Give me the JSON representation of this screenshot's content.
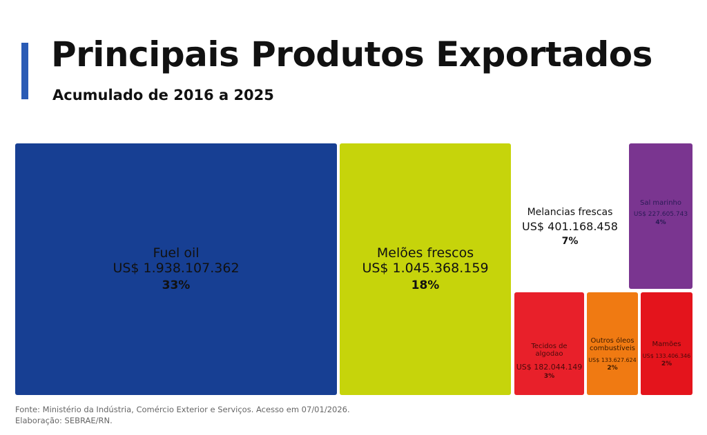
{
  "title": "Principais Produtos Exportados",
  "subtitle": "Acumulado de 2016 a 2025",
  "chart_data": {
    "type": "treemap",
    "title": "Principais Produtos Exportados",
    "subtitle": "Acumulado de 2016 a 2025",
    "items": [
      {
        "name": "Fuel oil",
        "value": "US$ 1.938.107.362",
        "pct": "33%",
        "color": "#173f93",
        "text": "#111"
      },
      {
        "name": "Melões frescos",
        "value": "US$ 1.045.368.159",
        "pct": "18%",
        "color": "#c6d40b",
        "text": "#111"
      },
      {
        "name": "Melancias frescas",
        "value": "US$ 401.168.458",
        "pct": "7%",
        "color": "#ffffff",
        "text": "#111"
      },
      {
        "name": "Sal marinho",
        "value": "US$ 227.605.743",
        "pct": "4%",
        "color": "#7a3590",
        "text": "#2a1a55"
      },
      {
        "name": "Tecidos de algodao",
        "value": "US$ 182.044.149",
        "pct": "3%",
        "color": "#e8202a",
        "text": "#4a0a0a"
      },
      {
        "name": "Outros óleos combustíveis",
        "value": "US$ 133.627.624",
        "pct": "2%",
        "color": "#f07a12",
        "text": "#3a1a00"
      },
      {
        "name": "Mamões",
        "value": "US$ 133.406.346",
        "pct": "2%",
        "color": "#e4141c",
        "text": "#4a0a0a"
      }
    ]
  },
  "source": "Fonte: Ministério da Indústria, Comércio Exterior e Serviços. Acesso em 07/01/2026.",
  "credit": "Elaboração: SEBRAE/RN."
}
